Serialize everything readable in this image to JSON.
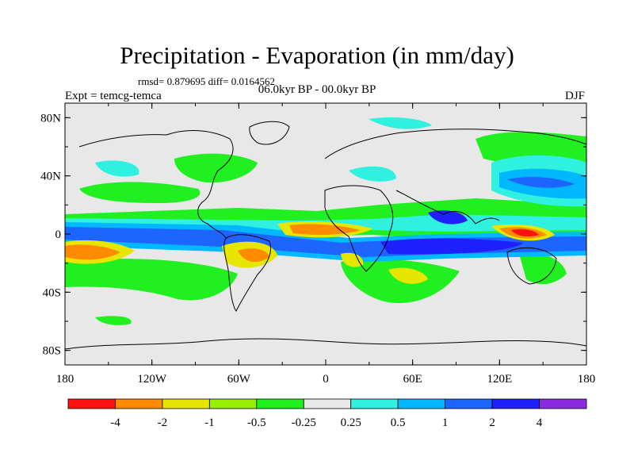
{
  "title": "Precipitation - Evaporation (in mm/day)",
  "stats_line": "rmsd= 0.879695  diff= 0.0164562",
  "period": "06.0kyr BP - 00.0kyr BP",
  "experiment": "Expt = temcg-temca",
  "season": "DJF",
  "lat_axis": {
    "labels": [
      "80N",
      "40N",
      "0",
      "40S",
      "80S"
    ],
    "values": [
      80,
      40,
      0,
      -40,
      -80
    ]
  },
  "lon_axis": {
    "labels": [
      "180",
      "120W",
      "60W",
      "0",
      "60E",
      "120E",
      "180"
    ],
    "values": [
      -180,
      -120,
      -60,
      0,
      60,
      120,
      180
    ]
  },
  "colorbar": {
    "labels": [
      "-4",
      "-2",
      "-1",
      "-0.5",
      "-0.25",
      "0.25",
      "0.5",
      "1",
      "2",
      "4"
    ],
    "colors": [
      "#ff1010",
      "#ff8c00",
      "#e6e600",
      "#96f000",
      "#20f020",
      "#e8e8e8",
      "#30f0e0",
      "#00b8ff",
      "#1e64ff",
      "#2020ff",
      "#8a2be2"
    ]
  },
  "colors": {
    "background": "#e8e8e8",
    "coast": "#000000"
  }
}
